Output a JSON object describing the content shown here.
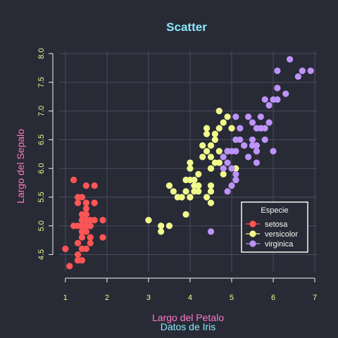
{
  "colors": {
    "background": "#282a36",
    "title": "#8be9fd",
    "axis_label": "#ff79c6",
    "tick_label": "#f1fa8c",
    "caption": "#8be9fd",
    "legend_border": "#f8f8f2",
    "legend_text": "#f8f8f2",
    "grid": "#4a4d5e"
  },
  "chart_data": {
    "type": "scatter",
    "title": "Scatter",
    "xlabel": "Largo del Petalo",
    "ylabel": "Largo del Sepalo",
    "caption": "Datos de Iris",
    "xlim": [
      0.85,
      7.05
    ],
    "ylim": [
      4.2,
      8.05
    ],
    "xticks": [
      1,
      2,
      3,
      4,
      5,
      6,
      7
    ],
    "yticks": [
      4.5,
      5.0,
      5.5,
      6.0,
      6.5,
      7.0,
      7.5,
      8.0
    ],
    "ytick_labels": [
      "4.5",
      "5.0",
      "5.5",
      "6.0",
      "6.5",
      "7.0",
      "7.5",
      "8.0"
    ],
    "grid": true,
    "legend": {
      "title": "Especie",
      "position": "right"
    },
    "series": [
      {
        "name": "setosa",
        "color": "#ff5555",
        "x": [
          1.4,
          1.4,
          1.3,
          1.5,
          1.4,
          1.7,
          1.4,
          1.5,
          1.4,
          1.5,
          1.5,
          1.6,
          1.4,
          1.1,
          1.2,
          1.5,
          1.3,
          1.4,
          1.7,
          1.5,
          1.7,
          1.5,
          1.0,
          1.7,
          1.9,
          1.6,
          1.6,
          1.5,
          1.4,
          1.6,
          1.6,
          1.5,
          1.5,
          1.4,
          1.5,
          1.2,
          1.3,
          1.4,
          1.3,
          1.5,
          1.3,
          1.3,
          1.3,
          1.6,
          1.9,
          1.4,
          1.6,
          1.4,
          1.5,
          1.4
        ],
        "y": [
          5.1,
          4.9,
          4.7,
          4.6,
          5.0,
          5.4,
          4.6,
          5.0,
          4.4,
          4.9,
          5.4,
          4.8,
          4.8,
          4.3,
          5.8,
          5.7,
          5.4,
          5.1,
          5.7,
          5.1,
          5.4,
          5.1,
          4.6,
          5.1,
          4.8,
          5.0,
          5.0,
          5.2,
          5.2,
          4.7,
          4.8,
          5.4,
          5.2,
          5.5,
          4.9,
          5.0,
          5.5,
          4.9,
          4.4,
          5.1,
          5.0,
          4.5,
          4.4,
          5.0,
          5.1,
          4.8,
          5.1,
          4.6,
          5.3,
          5.0
        ]
      },
      {
        "name": "versicolor",
        "color": "#f1fa8c",
        "x": [
          4.7,
          4.5,
          4.9,
          4.0,
          4.6,
          4.5,
          4.7,
          3.3,
          4.6,
          3.9,
          3.5,
          4.2,
          4.0,
          4.7,
          3.6,
          4.4,
          4.5,
          4.1,
          4.5,
          3.9,
          4.8,
          4.0,
          4.9,
          4.7,
          4.3,
          4.4,
          4.8,
          5.0,
          4.5,
          3.5,
          3.8,
          3.7,
          3.9,
          5.1,
          4.5,
          4.5,
          4.7,
          4.4,
          4.1,
          4.0,
          4.4,
          4.6,
          4.0,
          3.3,
          4.2,
          4.2,
          4.2,
          4.3,
          3.0,
          4.1
        ],
        "y": [
          7.0,
          6.4,
          6.9,
          5.5,
          6.5,
          5.7,
          6.3,
          4.9,
          6.6,
          5.2,
          5.0,
          5.9,
          6.0,
          6.1,
          5.6,
          6.7,
          5.6,
          5.8,
          6.2,
          5.6,
          5.9,
          6.1,
          6.3,
          6.1,
          6.4,
          6.6,
          6.8,
          6.7,
          6.0,
          5.7,
          5.5,
          5.5,
          5.8,
          6.0,
          5.4,
          6.0,
          6.7,
          6.3,
          5.6,
          5.5,
          5.5,
          6.1,
          5.8,
          5.0,
          5.6,
          5.7,
          5.7,
          6.2,
          5.1,
          5.7
        ]
      },
      {
        "name": "virginica",
        "color": "#bd93f9",
        "x": [
          6.0,
          5.1,
          5.9,
          5.6,
          5.8,
          6.6,
          4.5,
          6.3,
          5.8,
          6.1,
          5.1,
          5.3,
          5.5,
          5.0,
          5.1,
          5.3,
          5.5,
          6.7,
          6.9,
          5.0,
          5.7,
          4.9,
          6.7,
          4.9,
          5.7,
          6.0,
          4.8,
          4.9,
          5.6,
          5.8,
          6.1,
          6.4,
          5.6,
          5.1,
          5.6,
          6.1,
          5.6,
          5.5,
          4.8,
          5.4,
          5.6,
          5.1,
          5.1,
          5.9,
          5.7,
          5.2,
          5.0,
          5.2,
          5.4,
          5.1
        ],
        "y": [
          6.3,
          5.8,
          7.1,
          6.3,
          6.5,
          7.6,
          4.9,
          7.3,
          6.7,
          7.2,
          6.5,
          6.4,
          6.8,
          5.7,
          5.8,
          6.4,
          6.5,
          7.7,
          7.7,
          6.0,
          6.9,
          5.6,
          7.7,
          6.3,
          6.7,
          7.2,
          6.2,
          6.1,
          6.4,
          7.2,
          7.4,
          7.9,
          6.4,
          6.3,
          6.1,
          7.7,
          6.3,
          6.4,
          6.0,
          6.9,
          6.7,
          6.9,
          5.8,
          6.8,
          6.7,
          6.7,
          6.3,
          6.5,
          6.2,
          5.9
        ]
      }
    ]
  }
}
